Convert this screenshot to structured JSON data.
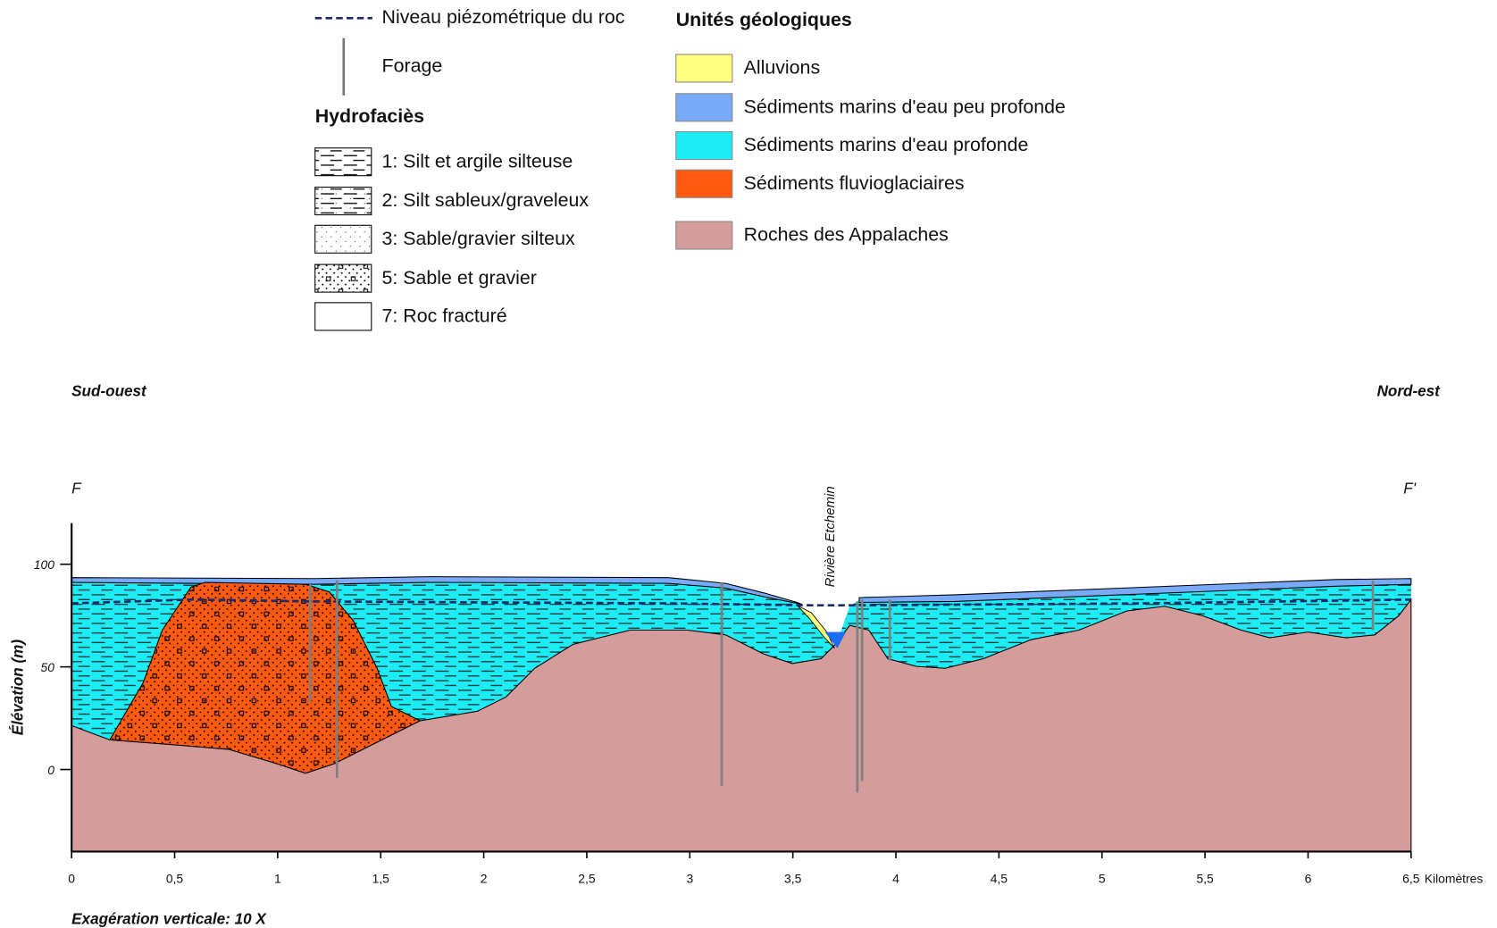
{
  "legend": {
    "piezometric": "Niveau piézométrique du roc",
    "borehole": "Forage",
    "hydrofacies_title": "Hydrofaciès",
    "hydrofacies": [
      "1: Silt et argile silteuse",
      "2: Silt sableux/graveleux",
      "3: Sable/gravier silteux",
      "5: Sable et gravier",
      "7: Roc fracturé"
    ],
    "units_title": "Unités géologiques",
    "units": [
      {
        "label": "Alluvions",
        "color": "#ffff80"
      },
      {
        "label": "Sédiments marins d'eau peu profonde",
        "color": "#78aaf8"
      },
      {
        "label": "Sédiments marins d'eau profonde",
        "color": "#1eecf4"
      },
      {
        "label": "Sédiments fluvioglaciaires",
        "color": "#ff5a10"
      },
      {
        "label": "Roches des Appalaches",
        "color": "#d49c9a"
      }
    ]
  },
  "section": {
    "left_direction": "Sud-ouest",
    "right_direction": "Nord-est",
    "left_end": "F",
    "right_end": "F'",
    "river": "Rivière Etchemin",
    "y_label": "Élévation (m)",
    "x_unit": "Kilomètres",
    "note": "Exagération verticale: 10 X",
    "xlim": [
      0,
      6.5
    ],
    "xticks": [
      0,
      {
        "value": 0.5,
        "label": "0,5"
      },
      1,
      {
        "value": 1.5,
        "label": "1,5"
      },
      2,
      {
        "value": 2.5,
        "label": "2,5"
      },
      3,
      {
        "value": 3.5,
        "label": "3,5"
      },
      4,
      {
        "value": 4.5,
        "label": "4,5"
      },
      5,
      {
        "value": 5.5,
        "label": "5,5"
      },
      6,
      {
        "value": 6.5,
        "label": "6,5"
      }
    ],
    "ylim": [
      -40,
      120
    ],
    "yticks": [
      0,
      50,
      100
    ]
  }
}
